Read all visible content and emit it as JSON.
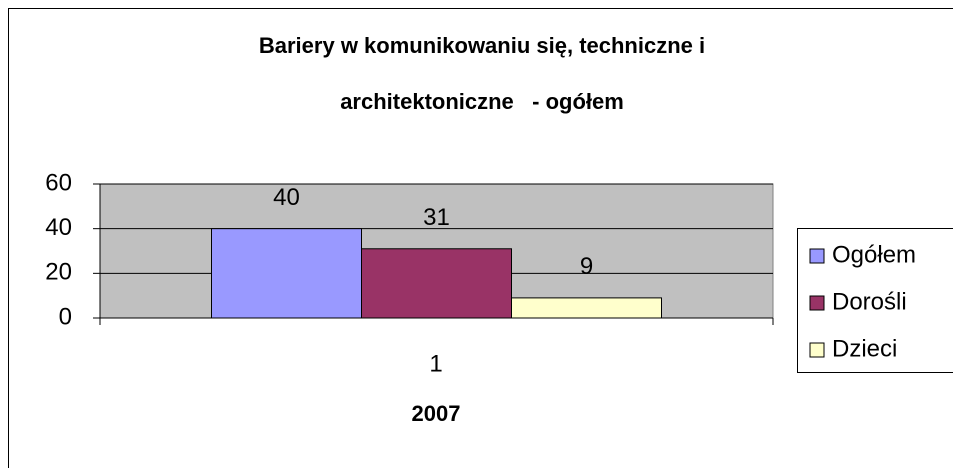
{
  "chart_data": {
    "type": "bar",
    "title": [
      "Bariery w komunikowaniu się, techniczne i",
      "architektoniczne   - ogółem"
    ],
    "x_label": "2007",
    "categories": [
      "1"
    ],
    "series": [
      {
        "name": "Ogółem",
        "color": "#9999ff",
        "values": [
          40
        ]
      },
      {
        "name": "Dorośli",
        "color": "#993366",
        "values": [
          31
        ]
      },
      {
        "name": "Dzieci",
        "color": "#ffffcc",
        "values": [
          9
        ]
      }
    ],
    "ylim": [
      0,
      60
    ],
    "yticks": [
      0,
      20,
      40,
      60
    ],
    "grid": true,
    "legend": "right"
  }
}
